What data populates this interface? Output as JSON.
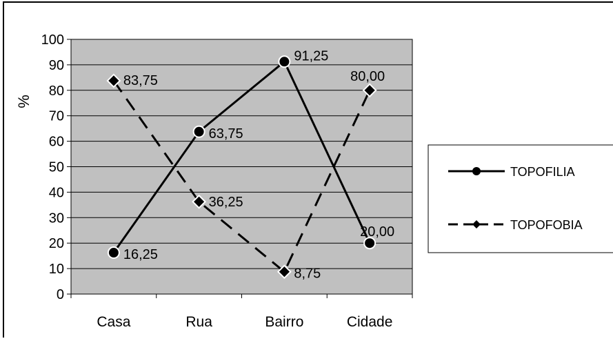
{
  "chart_data": {
    "type": "line",
    "title": "",
    "xlabel": "",
    "ylabel": "%",
    "ylim": [
      0,
      100
    ],
    "yticks": [
      0,
      10,
      20,
      30,
      40,
      50,
      60,
      70,
      80,
      90,
      100
    ],
    "categories": [
      "Casa",
      "Rua",
      "Bairro",
      "Cidade"
    ],
    "grid": true,
    "legend_position": "right",
    "plot_background": "#C0C0C0",
    "series": [
      {
        "name": "TOPOFILIA",
        "values": [
          16.25,
          63.75,
          91.25,
          20.0
        ],
        "labels": [
          "16,25",
          "63,75",
          "91,25",
          "20,00"
        ],
        "marker": "circle",
        "line_style": "solid",
        "color": "#000000"
      },
      {
        "name": "TOPOFOBIA",
        "values": [
          83.75,
          36.25,
          8.75,
          80.0
        ],
        "labels": [
          "83,75",
          "36,25",
          "8,75",
          "80,00"
        ],
        "marker": "diamond",
        "line_style": "dashed",
        "color": "#000000"
      }
    ]
  }
}
